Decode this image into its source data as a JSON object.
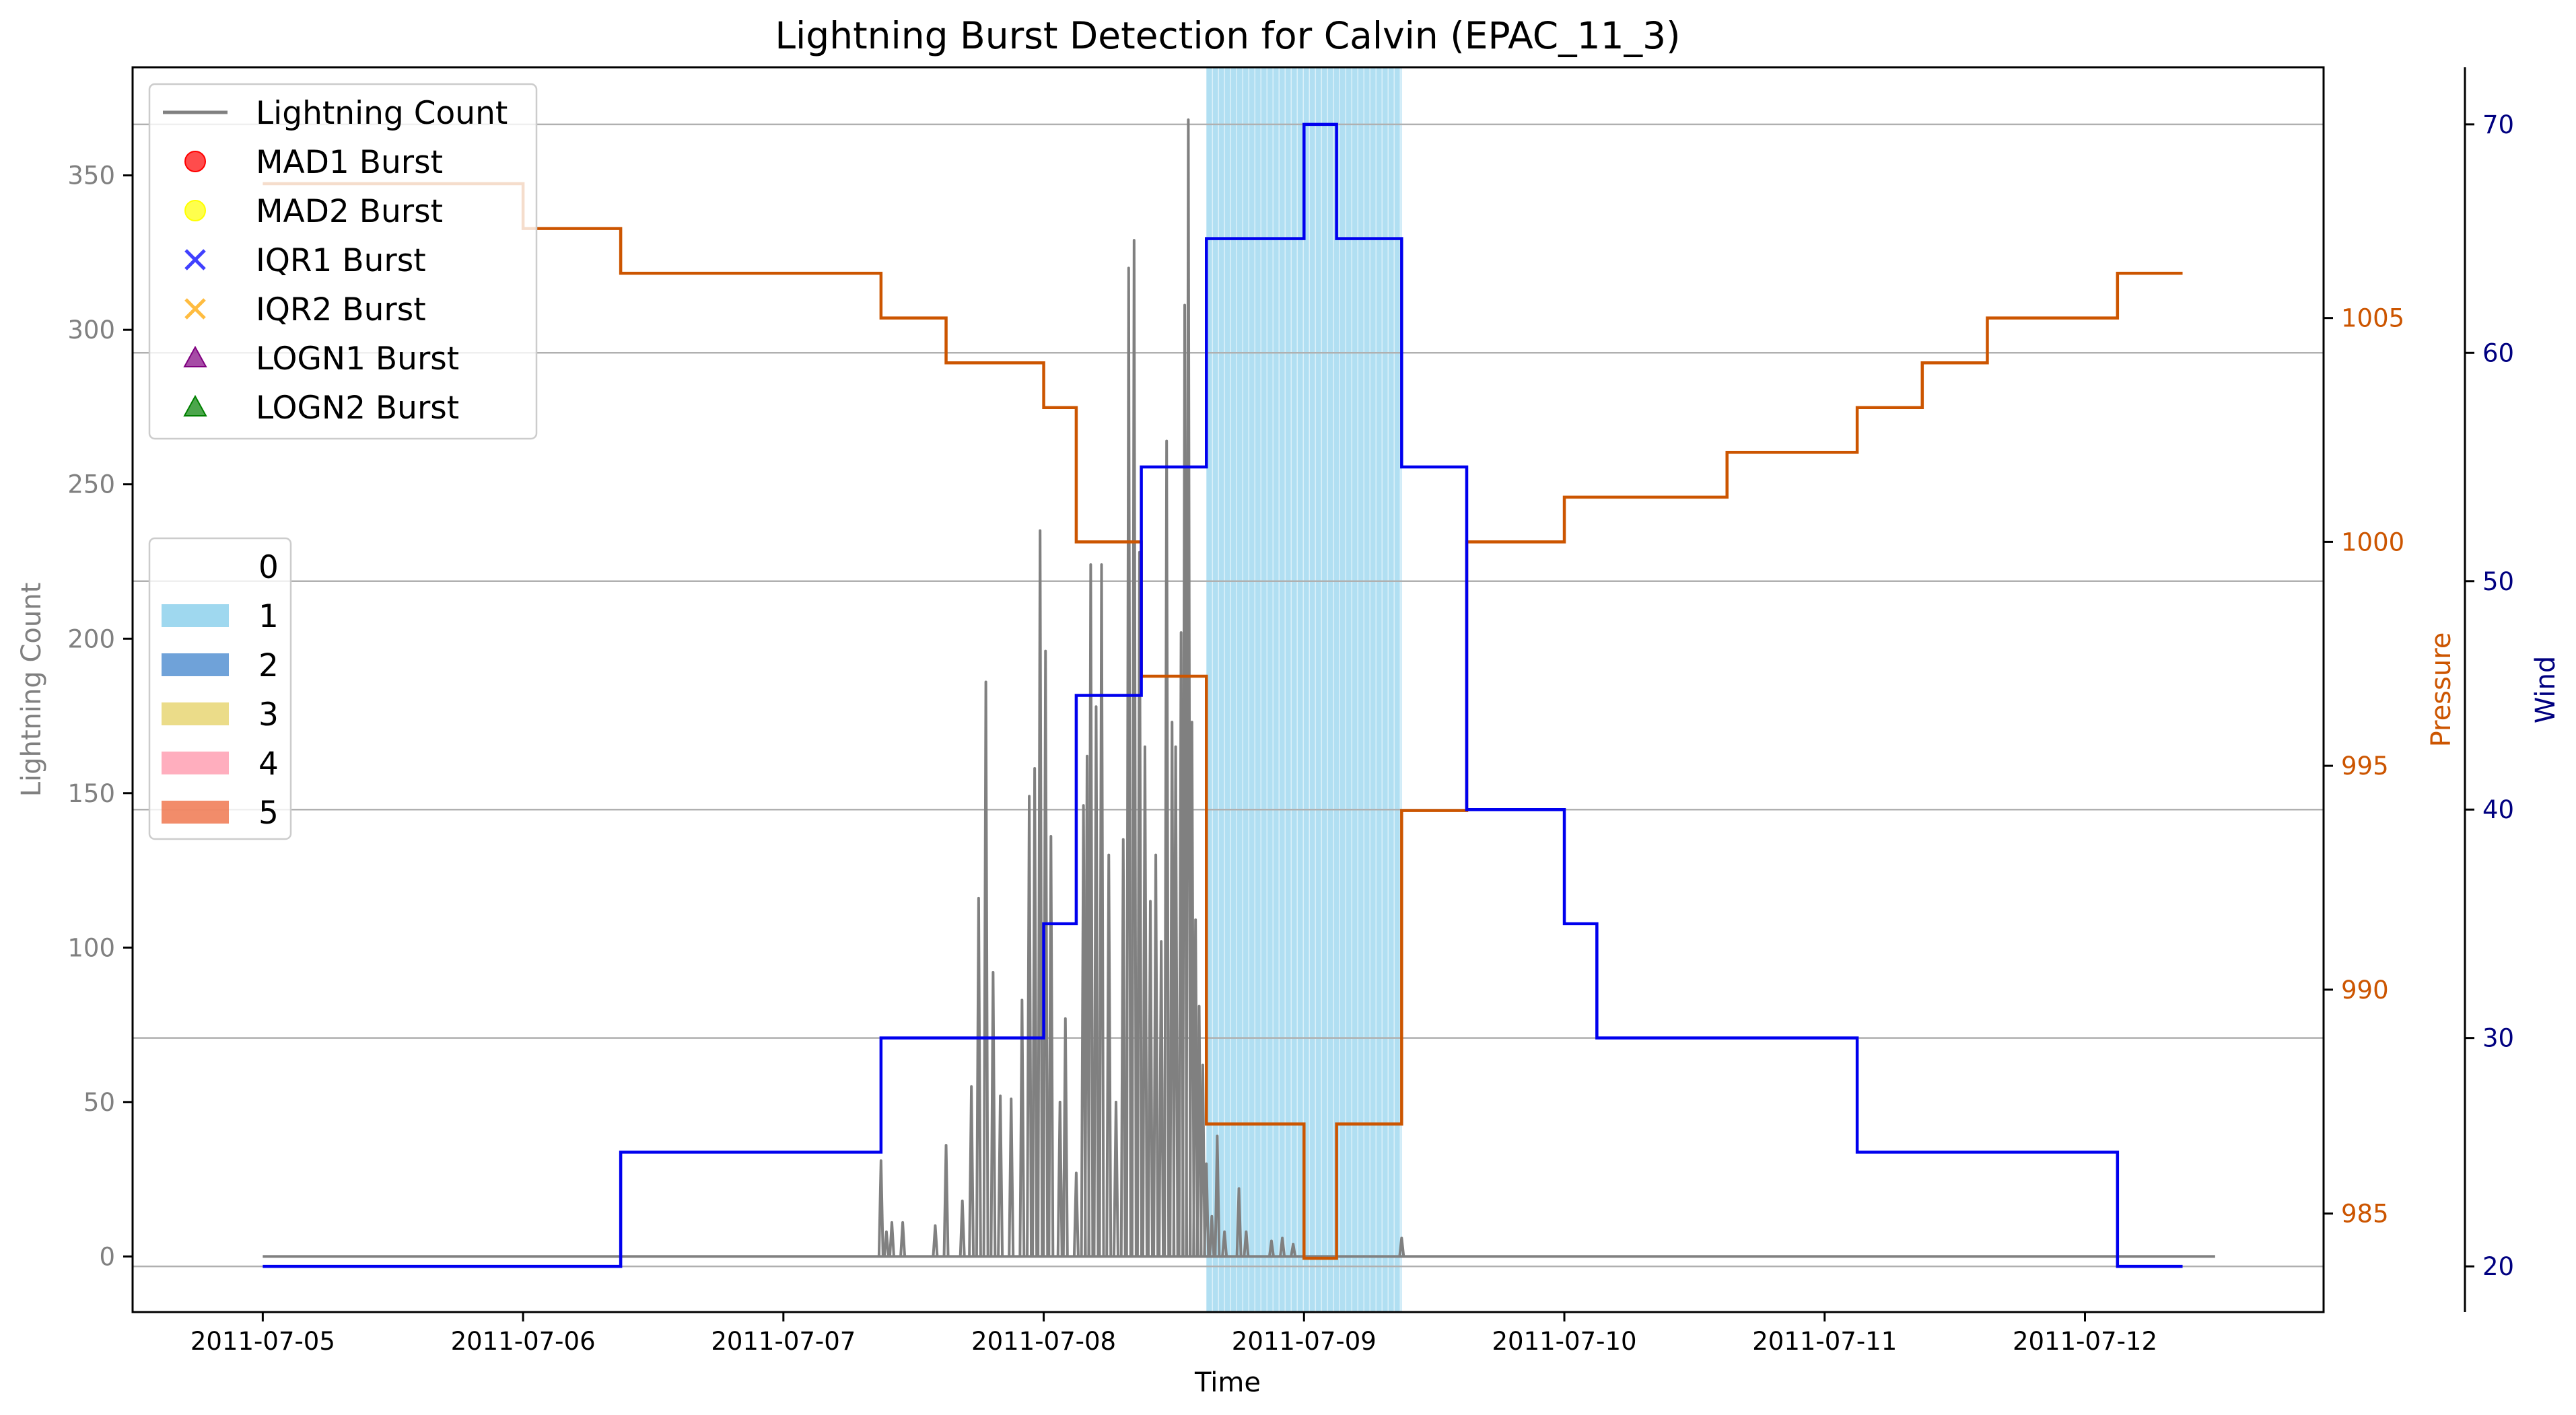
{
  "chart_data": {
    "type": "line",
    "title": "Lightning Burst Detection for Calvin (EPAC_11_3)",
    "xlabel": "Time",
    "ylabel": "Lightning Count",
    "y2label": "Pressure",
    "y3label": "Wind",
    "grid": true,
    "legend_placement": "top-left",
    "xlim": [
      "2011-07-04T12:00",
      "2011-07-12T22:00"
    ],
    "ylim": [
      -18,
      385
    ],
    "y2lim": [
      982.8,
      1010.6
    ],
    "y3lim": [
      18,
      72.5
    ],
    "x_ticks": [
      "2011-07-05",
      "2011-07-06",
      "2011-07-07",
      "2011-07-08",
      "2011-07-09",
      "2011-07-10",
      "2011-07-11",
      "2011-07-12"
    ],
    "y_ticks": [
      0,
      50,
      100,
      150,
      200,
      250,
      300,
      350
    ],
    "y2_ticks": [
      985,
      990,
      995,
      1000,
      1005
    ],
    "y3_ticks": [
      20,
      30,
      40,
      50,
      60,
      70
    ],
    "colors": {
      "lightning": "#808080",
      "pressure": "#cc5500",
      "wind": "#0000ee",
      "wind_axis": "#000080",
      "shade": "#87ceeb",
      "grid": "#b0b0b0"
    },
    "legend_markers": [
      {
        "label": "Lightning Count",
        "marker": "line",
        "color": "#808080"
      },
      {
        "label": "MAD1 Burst",
        "marker": "circle",
        "color": "#ff0000"
      },
      {
        "label": "MAD2 Burst",
        "marker": "circle",
        "color": "#ffff00"
      },
      {
        "label": "IQR1 Burst",
        "marker": "x",
        "color": "#0000ff"
      },
      {
        "label": "IQR2 Burst",
        "marker": "x",
        "color": "#ffa500"
      },
      {
        "label": "LOGN1 Burst",
        "marker": "triangle",
        "color": "#800080"
      },
      {
        "label": "LOGN2 Burst",
        "marker": "triangle",
        "color": "#008000"
      }
    ],
    "legend_categories": [
      {
        "label": "0",
        "color": "none"
      },
      {
        "label": "1",
        "color": "#87ceeb"
      },
      {
        "label": "2",
        "color": "#4b8bd0"
      },
      {
        "label": "3",
        "color": "#e6d36b"
      },
      {
        "label": "4",
        "color": "#ff9aae"
      },
      {
        "label": "5",
        "color": "#ef6f45"
      }
    ],
    "shaded_periods": [
      {
        "category": "1",
        "start": "2011-07-08T15:00",
        "end": "2011-07-09T09:00"
      }
    ],
    "lightning_peaks": [
      {
        "t": "2011-07-07T09:00",
        "v": 31
      },
      {
        "t": "2011-07-07T09:30",
        "v": 8
      },
      {
        "t": "2011-07-07T10:00",
        "v": 11
      },
      {
        "t": "2011-07-07T11:00",
        "v": 11
      },
      {
        "t": "2011-07-07T14:00",
        "v": 10
      },
      {
        "t": "2011-07-07T15:00",
        "v": 36
      },
      {
        "t": "2011-07-07T16:30",
        "v": 18
      },
      {
        "t": "2011-07-07T17:20",
        "v": 55
      },
      {
        "t": "2011-07-07T18:00",
        "v": 116
      },
      {
        "t": "2011-07-07T18:40",
        "v": 186
      },
      {
        "t": "2011-07-07T19:20",
        "v": 92
      },
      {
        "t": "2011-07-07T20:00",
        "v": 52
      },
      {
        "t": "2011-07-07T21:00",
        "v": 51
      },
      {
        "t": "2011-07-07T22:00",
        "v": 83
      },
      {
        "t": "2011-07-07T22:40",
        "v": 149
      },
      {
        "t": "2011-07-07T23:10",
        "v": 158
      },
      {
        "t": "2011-07-07T23:40",
        "v": 235
      },
      {
        "t": "2011-07-08T00:10",
        "v": 196
      },
      {
        "t": "2011-07-08T00:40",
        "v": 136
      },
      {
        "t": "2011-07-08T01:30",
        "v": 50
      },
      {
        "t": "2011-07-08T02:00",
        "v": 77
      },
      {
        "t": "2011-07-08T03:00",
        "v": 27
      },
      {
        "t": "2011-07-08T03:40",
        "v": 146
      },
      {
        "t": "2011-07-08T04:00",
        "v": 162
      },
      {
        "t": "2011-07-08T04:20",
        "v": 224
      },
      {
        "t": "2011-07-08T04:50",
        "v": 178
      },
      {
        "t": "2011-07-08T05:20",
        "v": 224
      },
      {
        "t": "2011-07-08T06:00",
        "v": 130
      },
      {
        "t": "2011-07-08T06:40",
        "v": 50
      },
      {
        "t": "2011-07-08T07:20",
        "v": 135
      },
      {
        "t": "2011-07-08T07:50",
        "v": 320
      },
      {
        "t": "2011-07-08T08:20",
        "v": 329
      },
      {
        "t": "2011-07-08T08:50",
        "v": 228
      },
      {
        "t": "2011-07-08T09:20",
        "v": 165
      },
      {
        "t": "2011-07-08T09:50",
        "v": 115
      },
      {
        "t": "2011-07-08T10:20",
        "v": 130
      },
      {
        "t": "2011-07-08T10:50",
        "v": 102
      },
      {
        "t": "2011-07-08T11:20",
        "v": 264
      },
      {
        "t": "2011-07-08T11:50",
        "v": 173
      },
      {
        "t": "2011-07-08T12:10",
        "v": 165
      },
      {
        "t": "2011-07-08T12:40",
        "v": 202
      },
      {
        "t": "2011-07-08T13:00",
        "v": 308
      },
      {
        "t": "2011-07-08T13:20",
        "v": 368
      },
      {
        "t": "2011-07-08T13:40",
        "v": 173
      },
      {
        "t": "2011-07-08T14:00",
        "v": 109
      },
      {
        "t": "2011-07-08T14:20",
        "v": 81
      },
      {
        "t": "2011-07-08T14:40",
        "v": 62
      },
      {
        "t": "2011-07-08T15:00",
        "v": 30
      },
      {
        "t": "2011-07-08T15:30",
        "v": 13
      },
      {
        "t": "2011-07-08T16:00",
        "v": 39
      },
      {
        "t": "2011-07-08T16:40",
        "v": 8
      },
      {
        "t": "2011-07-08T18:00",
        "v": 22
      },
      {
        "t": "2011-07-08T18:40",
        "v": 8
      },
      {
        "t": "2011-07-08T21:00",
        "v": 5
      },
      {
        "t": "2011-07-08T22:00",
        "v": 6
      },
      {
        "t": "2011-07-08T23:00",
        "v": 4
      },
      {
        "t": "2011-07-09T09:00",
        "v": 6
      }
    ],
    "pressure_steps": [
      {
        "t": "2011-07-05T00:00",
        "v": 1008
      },
      {
        "t": "2011-07-06T00:00",
        "v": 1007
      },
      {
        "t": "2011-07-06T09:00",
        "v": 1006
      },
      {
        "t": "2011-07-07T09:00",
        "v": 1005
      },
      {
        "t": "2011-07-07T15:00",
        "v": 1004
      },
      {
        "t": "2011-07-08T00:00",
        "v": 1003
      },
      {
        "t": "2011-07-08T03:00",
        "v": 1000
      },
      {
        "t": "2011-07-08T09:00",
        "v": 997
      },
      {
        "t": "2011-07-08T15:00",
        "v": 987
      },
      {
        "t": "2011-07-09T00:00",
        "v": 984
      },
      {
        "t": "2011-07-09T03:00",
        "v": 987
      },
      {
        "t": "2011-07-09T09:00",
        "v": 994
      },
      {
        "t": "2011-07-09T15:00",
        "v": 1000
      },
      {
        "t": "2011-07-10T00:00",
        "v": 1001
      },
      {
        "t": "2011-07-10T15:00",
        "v": 1002
      },
      {
        "t": "2011-07-11T03:00",
        "v": 1003
      },
      {
        "t": "2011-07-11T09:00",
        "v": 1004
      },
      {
        "t": "2011-07-11T15:00",
        "v": 1005
      },
      {
        "t": "2011-07-12T03:00",
        "v": 1006
      },
      {
        "t": "2011-07-12T09:00",
        "v": 1006
      }
    ],
    "wind_steps": [
      {
        "t": "2011-07-05T00:00",
        "v": 20
      },
      {
        "t": "2011-07-06T09:00",
        "v": 25
      },
      {
        "t": "2011-07-07T09:00",
        "v": 30
      },
      {
        "t": "2011-07-08T00:00",
        "v": 35
      },
      {
        "t": "2011-07-08T03:00",
        "v": 45
      },
      {
        "t": "2011-07-08T09:00",
        "v": 55
      },
      {
        "t": "2011-07-08T15:00",
        "v": 65
      },
      {
        "t": "2011-07-09T00:00",
        "v": 70
      },
      {
        "t": "2011-07-09T03:00",
        "v": 65
      },
      {
        "t": "2011-07-09T09:00",
        "v": 55
      },
      {
        "t": "2011-07-09T15:00",
        "v": 40
      },
      {
        "t": "2011-07-10T00:00",
        "v": 35
      },
      {
        "t": "2011-07-10T03:00",
        "v": 30
      },
      {
        "t": "2011-07-11T03:00",
        "v": 25
      },
      {
        "t": "2011-07-12T03:00",
        "v": 20
      },
      {
        "t": "2011-07-12T09:00",
        "v": 20
      }
    ],
    "series": [
      {
        "name": "Lightning Count",
        "axis": "left"
      },
      {
        "name": "Pressure",
        "axis": "right"
      },
      {
        "name": "Wind",
        "axis": "right-outer"
      }
    ]
  }
}
